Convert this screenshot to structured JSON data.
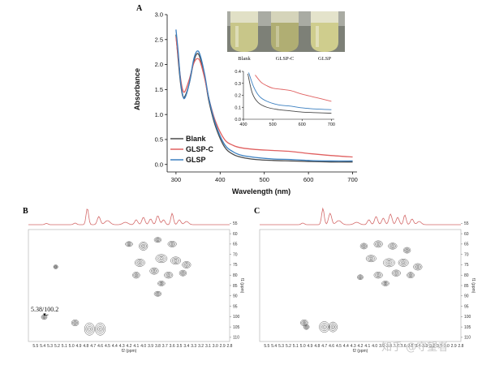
{
  "panels": {
    "a": "A",
    "b": "B",
    "c": "C"
  },
  "watermark": "知乎 @守望者",
  "photo": {
    "labels": [
      "Blank",
      "GLSP-C",
      "GLSP"
    ]
  },
  "chart_data": [
    {
      "id": "uv_main",
      "type": "line",
      "xlabel": "Wavelength (nm)",
      "ylabel": "Absorbance",
      "xlim": [
        280,
        710
      ],
      "ylim": [
        -0.15,
        3.0
      ],
      "xticks": [
        300,
        400,
        500,
        600,
        700
      ],
      "yticks": [
        0.0,
        0.5,
        1.0,
        1.5,
        2.0,
        2.5,
        3.0
      ],
      "legend_position": "lower-left",
      "series": [
        {
          "name": "Blank",
          "color": "#4a4a4a",
          "x": [
            300,
            305,
            310,
            315,
            320,
            330,
            340,
            348,
            355,
            365,
            375,
            390,
            410,
            430,
            450,
            480,
            520,
            560,
            600,
            650,
            700
          ],
          "y": [
            2.6,
            2.1,
            1.65,
            1.38,
            1.36,
            1.62,
            2.05,
            2.22,
            2.12,
            1.75,
            1.25,
            0.75,
            0.35,
            0.2,
            0.14,
            0.1,
            0.08,
            0.07,
            0.06,
            0.05,
            0.05
          ]
        },
        {
          "name": "GLSP-C",
          "color": "#e06060",
          "x": [
            300,
            305,
            310,
            315,
            320,
            330,
            340,
            348,
            355,
            365,
            375,
            390,
            410,
            430,
            450,
            480,
            520,
            560,
            600,
            650,
            700
          ],
          "y": [
            2.55,
            2.15,
            1.75,
            1.5,
            1.46,
            1.7,
            2.02,
            2.12,
            2.05,
            1.72,
            1.3,
            0.85,
            0.5,
            0.38,
            0.33,
            0.3,
            0.28,
            0.26,
            0.22,
            0.18,
            0.15
          ]
        },
        {
          "name": "GLSP",
          "color": "#3a7fc0",
          "x": [
            300,
            305,
            310,
            315,
            320,
            330,
            340,
            348,
            355,
            365,
            375,
            390,
            410,
            430,
            450,
            480,
            520,
            560,
            600,
            650,
            700
          ],
          "y": [
            2.7,
            2.25,
            1.7,
            1.4,
            1.33,
            1.62,
            2.1,
            2.27,
            2.18,
            1.8,
            1.3,
            0.8,
            0.4,
            0.25,
            0.18,
            0.14,
            0.11,
            0.1,
            0.08,
            0.07,
            0.07
          ]
        }
      ]
    },
    {
      "id": "uv_inset",
      "type": "line",
      "xlim": [
        400,
        710
      ],
      "ylim": [
        0.0,
        0.4
      ],
      "xticks": [
        400,
        500,
        600,
        700
      ],
      "yticks": [
        0.0,
        0.1,
        0.2,
        0.3,
        0.4
      ],
      "series": [
        {
          "name": "Blank",
          "color": "#4a4a4a",
          "x": [
            415,
            430,
            450,
            480,
            520,
            560,
            600,
            650,
            700
          ],
          "y": [
            0.38,
            0.22,
            0.14,
            0.1,
            0.08,
            0.07,
            0.06,
            0.055,
            0.05
          ]
        },
        {
          "name": "GLSP-C",
          "color": "#e06060",
          "x": [
            440,
            460,
            480,
            500,
            530,
            560,
            600,
            650,
            700
          ],
          "y": [
            0.37,
            0.31,
            0.28,
            0.26,
            0.25,
            0.24,
            0.21,
            0.18,
            0.15
          ]
        },
        {
          "name": "GLSP",
          "color": "#3a7fc0",
          "x": [
            418,
            435,
            455,
            480,
            520,
            560,
            600,
            650,
            700
          ],
          "y": [
            0.39,
            0.27,
            0.19,
            0.15,
            0.12,
            0.11,
            0.095,
            0.085,
            0.08
          ]
        }
      ]
    },
    {
      "id": "nmr_b",
      "type": "scatter",
      "xlabel": "f2 (ppm)",
      "ylabel": "f1 (ppm)",
      "xlim": [
        5.6,
        2.8
      ],
      "ylim": [
        58,
        112
      ],
      "xticks": [
        "5.5",
        "5.4",
        "5.3",
        "5.2",
        "5.1",
        "5.0",
        "4.9",
        "4.8",
        "4.7",
        "4.6",
        "4.5",
        "4.4",
        "4.3",
        "4.2",
        "4.1",
        "4.0",
        "3.9",
        "3.8",
        "3.7",
        "3.6",
        "3.5",
        "3.4",
        "3.3",
        "3.2",
        "3.1",
        "3.0",
        "2.9",
        "2.8"
      ],
      "yticks": [
        "55",
        "60",
        "65",
        "70",
        "75",
        "80",
        "85",
        "90",
        "95",
        "100",
        "105",
        "110"
      ],
      "annotation": "5.38/100.2",
      "peaks": [
        {
          "x": 4.75,
          "y": 106,
          "w": 0.07,
          "h": 3.0
        },
        {
          "x": 4.6,
          "y": 106,
          "w": 0.07,
          "h": 3.0
        },
        {
          "x": 4.95,
          "y": 103,
          "w": 0.05,
          "h": 1.5
        },
        {
          "x": 5.38,
          "y": 100.2,
          "w": 0.04,
          "h": 1.2
        },
        {
          "x": 5.22,
          "y": 76,
          "w": 0.03,
          "h": 1.0
        },
        {
          "x": 4.2,
          "y": 65,
          "w": 0.05,
          "h": 1.2
        },
        {
          "x": 4.0,
          "y": 66,
          "w": 0.06,
          "h": 2.0
        },
        {
          "x": 3.8,
          "y": 63,
          "w": 0.05,
          "h": 1.2
        },
        {
          "x": 3.6,
          "y": 65,
          "w": 0.06,
          "h": 1.4
        },
        {
          "x": 4.05,
          "y": 74,
          "w": 0.07,
          "h": 1.8
        },
        {
          "x": 3.75,
          "y": 72,
          "w": 0.08,
          "h": 2.0
        },
        {
          "x": 3.55,
          "y": 73,
          "w": 0.07,
          "h": 1.8
        },
        {
          "x": 3.4,
          "y": 75,
          "w": 0.06,
          "h": 1.6
        },
        {
          "x": 3.85,
          "y": 78,
          "w": 0.06,
          "h": 1.6
        },
        {
          "x": 3.65,
          "y": 80,
          "w": 0.06,
          "h": 1.5
        },
        {
          "x": 3.45,
          "y": 79,
          "w": 0.05,
          "h": 1.4
        },
        {
          "x": 4.1,
          "y": 80,
          "w": 0.05,
          "h": 1.5
        },
        {
          "x": 3.75,
          "y": 84,
          "w": 0.05,
          "h": 1.2
        },
        {
          "x": 3.8,
          "y": 89,
          "w": 0.05,
          "h": 1.2
        }
      ]
    },
    {
      "id": "nmr_c",
      "type": "scatter",
      "xlabel": "f2 (ppm)",
      "ylabel": "f1 (ppm)",
      "xlim": [
        5.6,
        2.8
      ],
      "ylim": [
        58,
        112
      ],
      "xticks": [
        "5.5",
        "5.4",
        "5.3",
        "5.2",
        "5.1",
        "5.0",
        "4.9",
        "4.8",
        "4.7",
        "4.6",
        "4.5",
        "4.4",
        "4.3",
        "4.2",
        "4.1",
        "4.0",
        "3.9",
        "3.8",
        "3.7",
        "3.6",
        "3.5",
        "3.4",
        "3.3",
        "3.2",
        "3.1",
        "3.0",
        "2.9",
        "2.8"
      ],
      "yticks": [
        "55",
        "60",
        "65",
        "70",
        "75",
        "80",
        "85",
        "90",
        "95",
        "100",
        "105",
        "110"
      ],
      "peaks": [
        {
          "x": 4.7,
          "y": 105,
          "w": 0.07,
          "h": 2.6
        },
        {
          "x": 4.58,
          "y": 105,
          "w": 0.06,
          "h": 2.4
        },
        {
          "x": 4.98,
          "y": 103,
          "w": 0.05,
          "h": 1.5
        },
        {
          "x": 4.95,
          "y": 105,
          "w": 0.04,
          "h": 1.2
        },
        {
          "x": 4.15,
          "y": 66,
          "w": 0.05,
          "h": 1.4
        },
        {
          "x": 3.95,
          "y": 65,
          "w": 0.06,
          "h": 1.6
        },
        {
          "x": 3.75,
          "y": 66,
          "w": 0.06,
          "h": 1.5
        },
        {
          "x": 3.55,
          "y": 68,
          "w": 0.05,
          "h": 1.4
        },
        {
          "x": 4.05,
          "y": 72,
          "w": 0.07,
          "h": 1.6
        },
        {
          "x": 3.8,
          "y": 74,
          "w": 0.08,
          "h": 2.0
        },
        {
          "x": 3.6,
          "y": 74,
          "w": 0.07,
          "h": 1.8
        },
        {
          "x": 3.4,
          "y": 76,
          "w": 0.06,
          "h": 1.6
        },
        {
          "x": 3.95,
          "y": 80,
          "w": 0.06,
          "h": 1.5
        },
        {
          "x": 3.7,
          "y": 79,
          "w": 0.06,
          "h": 1.5
        },
        {
          "x": 3.5,
          "y": 80,
          "w": 0.05,
          "h": 1.4
        },
        {
          "x": 4.2,
          "y": 81,
          "w": 0.04,
          "h": 1.2
        },
        {
          "x": 3.85,
          "y": 84,
          "w": 0.05,
          "h": 1.2
        }
      ]
    }
  ]
}
